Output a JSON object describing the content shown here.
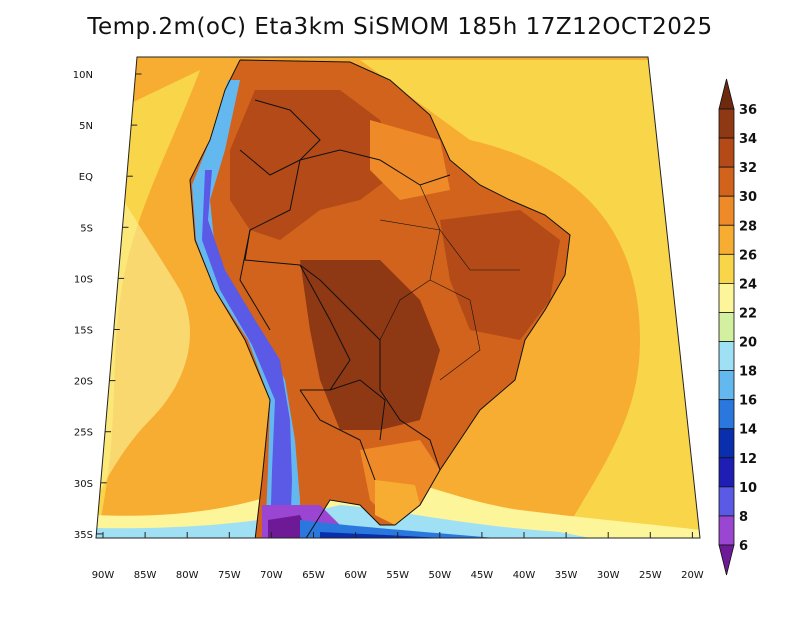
{
  "title": "Temp.2m(oC) Eta3km SiSMOM 185h 17Z12OCT2025",
  "lat_labels": [
    "10N",
    "5N",
    "EQ",
    "5S",
    "10S",
    "15S",
    "20S",
    "25S",
    "30S",
    "35S"
  ],
  "lon_labels": [
    "90W",
    "85W",
    "80W",
    "75W",
    "70W",
    "65W",
    "60W",
    "55W",
    "50W",
    "45W",
    "40W",
    "35W",
    "30W",
    "25W",
    "20W"
  ],
  "colorbar": {
    "labels": [
      "36",
      "34",
      "32",
      "30",
      "28",
      "26",
      "24",
      "22",
      "20",
      "18",
      "16",
      "14",
      "12",
      "10",
      "8",
      "6"
    ],
    "colors": [
      "#6e2a0f",
      "#8f3814",
      "#b34a17",
      "#d2631c",
      "#ee8a28",
      "#f6ad32",
      "#f9d54a",
      "#fcf59a",
      "#d2f0a0",
      "#a0e0f4",
      "#64b8f0",
      "#2a78de",
      "#0a2fae",
      "#1e1eb4",
      "#5a5ae6",
      "#9a46d2",
      "#6e1a96"
    ]
  },
  "colors": {
    "ocean_warm": "#f6ad32",
    "ocean_mild": "#f9d54a",
    "land_hot": "#d2631c",
    "land_very_hot": "#8f3814",
    "andes_cold": "#5a5ae6",
    "border": "#111111"
  }
}
